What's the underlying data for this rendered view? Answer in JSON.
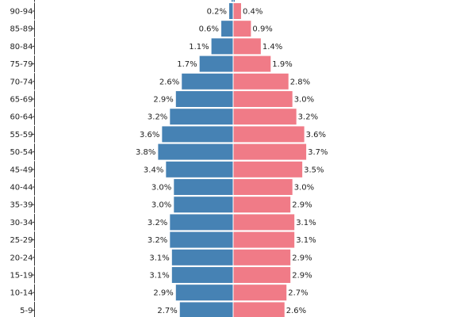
{
  "chart_data": {
    "type": "bar",
    "orientation": "horizontal",
    "layout": "population-pyramid",
    "categories": [
      "90-94",
      "85-89",
      "80-84",
      "75-79",
      "70-74",
      "65-69",
      "60-64",
      "55-59",
      "50-54",
      "45-49",
      "40-44",
      "35-39",
      "30-34",
      "25-29",
      "20-24",
      "15-19",
      "10-14",
      "5-9"
    ],
    "series": [
      {
        "side": "left",
        "color": "#4682b4",
        "values": [
          0.2,
          0.6,
          1.1,
          1.7,
          2.6,
          2.9,
          3.2,
          3.6,
          3.8,
          3.4,
          3.0,
          3.0,
          3.2,
          3.2,
          3.1,
          3.1,
          2.9,
          2.7
        ],
        "labels": [
          "0.2%",
          "0.6%",
          "1.1%",
          "1.7%",
          "2.6%",
          "2.9%",
          "3.2%",
          "3.6%",
          "3.8%",
          "3.4%",
          "3.0%",
          "3.0%",
          "3.2%",
          "3.2%",
          "3.1%",
          "3.1%",
          "2.9%",
          "2.7%"
        ]
      },
      {
        "side": "right",
        "color": "#f07b87",
        "values": [
          0.4,
          0.9,
          1.4,
          1.9,
          2.8,
          3.0,
          3.2,
          3.6,
          3.7,
          3.5,
          3.0,
          2.9,
          3.1,
          3.1,
          2.9,
          2.9,
          2.7,
          2.6
        ],
        "labels": [
          "0.4%",
          "0.9%",
          "1.4%",
          "1.9%",
          "2.8%",
          "3.0%",
          "3.2%",
          "3.6%",
          "3.7%",
          "3.5%",
          "3.0%",
          "2.9%",
          "3.1%",
          "3.1%",
          "2.9%",
          "2.9%",
          "2.7%",
          "2.6%"
        ]
      }
    ],
    "value_unit": "%",
    "title": "",
    "xlabel": "",
    "ylabel": "",
    "grid": false,
    "legend": "none"
  }
}
